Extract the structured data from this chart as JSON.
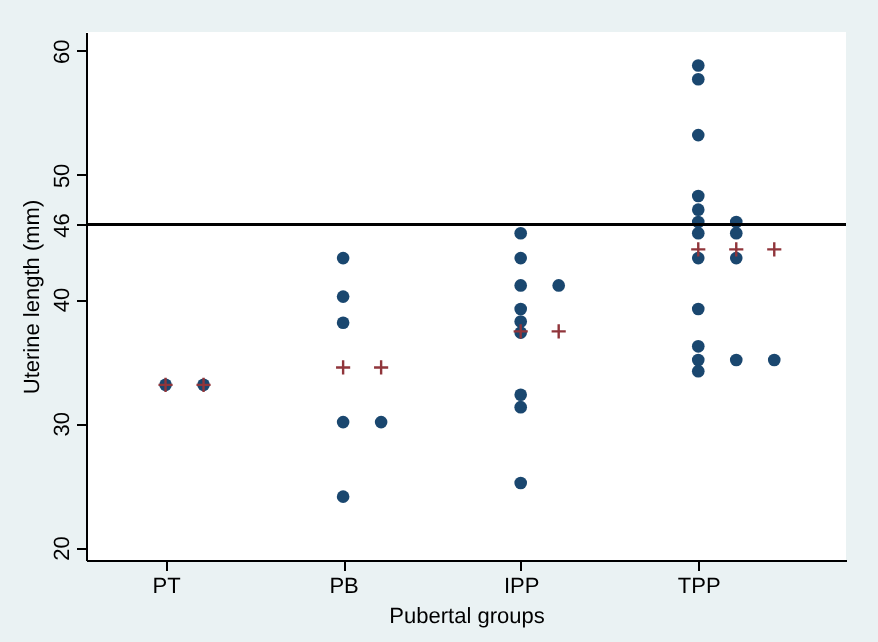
{
  "chart_data": {
    "type": "scatter",
    "xlabel": "Pubertal groups",
    "ylabel": "Uterine length (mm)",
    "categories": [
      "PT",
      "PB",
      "IPP",
      "TPP"
    ],
    "ylim": [
      19,
      61.5
    ],
    "yticks": [
      20,
      30,
      40,
      46,
      50,
      60
    ],
    "grid": false,
    "ref_lines": [
      {
        "axis": "y",
        "value": 46,
        "color": "#000000"
      }
    ],
    "series": [
      {
        "color": "#1a476f",
        "marker": "circle",
        "x": [
          "PT",
          "PT",
          "PB",
          "PB",
          "PB",
          "PB",
          "PB",
          "PB",
          "IPP",
          "IPP",
          "IPP",
          "IPP",
          "IPP",
          "IPP",
          "IPP",
          "IPP",
          "IPP",
          "IPP",
          "TPP",
          "TPP",
          "TPP",
          "TPP",
          "TPP",
          "TPP",
          "TPP",
          "TPP",
          "TPP",
          "TPP",
          "TPP",
          "TPP",
          "TPP",
          "TPP",
          "TPP",
          "TPP",
          "TPP"
        ],
        "values": [
          33.1,
          33.1,
          43.3,
          40.2,
          38.1,
          30.1,
          24.1,
          30.1,
          45.3,
          43.3,
          41.1,
          39.2,
          38.2,
          37.3,
          32.3,
          31.3,
          25.2,
          41.1,
          58.8,
          57.7,
          53.2,
          48.3,
          47.2,
          46.2,
          45.3,
          43.3,
          39.2,
          36.2,
          35.1,
          34.2,
          46.2,
          45.3,
          43.3,
          35.1,
          35.1
        ]
      },
      {
        "color": "#90353b",
        "marker": "cross",
        "x": [
          "PT",
          "PT",
          "PB",
          "PB",
          "IPP",
          "IPP",
          "TPP",
          "TPP",
          "TPP"
        ],
        "values": [
          33.1,
          33.1,
          34.5,
          34.5,
          37.4,
          37.4,
          44.0,
          44.0,
          44.0
        ]
      }
    ]
  }
}
